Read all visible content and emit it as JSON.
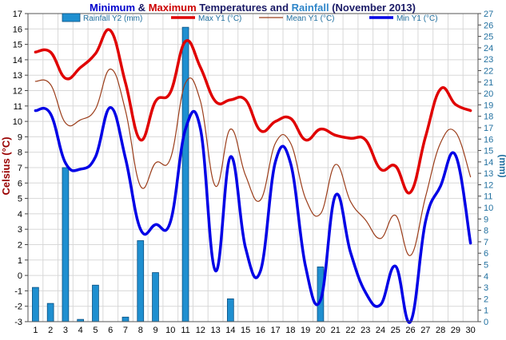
{
  "title": {
    "part1": "Minimum",
    "part2": " & ",
    "part3": "Maximum",
    "part4": " Temperatures and ",
    "part5": "Rainfall",
    "part6": " (November 2013)"
  },
  "colors": {
    "title_min": "#0000cc",
    "title_max": "#cc0000",
    "title_rain": "#2f86c9",
    "title_text": "#1a1a66",
    "rain_bar": "#1f8fd0",
    "rain_bar_stroke": "#0a4f80",
    "max_line": "#e00000",
    "mean_line": "#9b3d1a",
    "min_line": "#0000e6",
    "left_axis": "#990000",
    "right_axis": "#1f6f9f",
    "grid": "#d8d8d8"
  },
  "chart_data": {
    "type": "line",
    "title": "Minimum & Maximum Temperatures and Rainfall (November 2013)",
    "xlabel": "",
    "ylabel": "Celsius (°C)",
    "y2label": "(mm)",
    "x": [
      1,
      2,
      3,
      4,
      5,
      6,
      7,
      8,
      9,
      10,
      11,
      12,
      13,
      14,
      15,
      16,
      17,
      18,
      19,
      20,
      21,
      22,
      23,
      24,
      25,
      26,
      27,
      28,
      29,
      30
    ],
    "ylim": [
      -3,
      17
    ],
    "y_ticks": [
      -3,
      -2,
      -1,
      0,
      1,
      2,
      3,
      4,
      5,
      6,
      7,
      8,
      9,
      10,
      11,
      12,
      13,
      14,
      15,
      16,
      17
    ],
    "y2lim": [
      0,
      27
    ],
    "y2_ticks": [
      0,
      1,
      2,
      3,
      4,
      5,
      6,
      7,
      8,
      9,
      10,
      11,
      12,
      13,
      14,
      15,
      16,
      17,
      18,
      19,
      20,
      21,
      22,
      23,
      24,
      25,
      26,
      27
    ],
    "legend_position": "top",
    "grid": true,
    "series": [
      {
        "name": "Rainfall Y2 (mm)",
        "kind": "bar",
        "axis": "y2",
        "color": "#1f8fd0",
        "values": [
          3.0,
          1.6,
          13.5,
          0.2,
          3.2,
          0,
          0.4,
          7.1,
          4.3,
          0,
          25.8,
          0,
          0,
          2.0,
          0,
          0,
          0,
          0,
          0,
          4.8,
          0,
          0,
          0,
          0,
          0,
          0,
          0,
          0,
          0,
          0
        ]
      },
      {
        "name": "Max Y1 (°C)",
        "kind": "line",
        "axis": "y",
        "color": "#e00000",
        "values": [
          14.5,
          14.5,
          12.8,
          13.5,
          14.4,
          15.9,
          12.5,
          8.8,
          11.3,
          11.9,
          15.2,
          13.5,
          11.3,
          11.4,
          11.4,
          9.4,
          10.0,
          10.2,
          8.8,
          9.5,
          9.1,
          8.9,
          8.8,
          6.9,
          7.1,
          5.4,
          9.0,
          12.1,
          11.1,
          10.7
        ]
      },
      {
        "name": "Mean Y1 (°C)",
        "kind": "line",
        "axis": "y",
        "color": "#9b3d1a",
        "values": [
          12.6,
          12.4,
          9.9,
          10.1,
          10.8,
          13.4,
          10.7,
          5.8,
          7.3,
          7.6,
          12.5,
          11.3,
          5.8,
          9.5,
          6.5,
          4.9,
          8.6,
          8.6,
          5.0,
          4.0,
          7.2,
          4.8,
          3.6,
          2.4,
          3.9,
          1.3,
          5.1,
          8.6,
          9.3,
          6.4
        ]
      },
      {
        "name": "Min Y1 (°C)",
        "kind": "line",
        "axis": "y",
        "color": "#0000e6",
        "values": [
          10.7,
          10.5,
          7.3,
          6.9,
          7.7,
          10.9,
          7.6,
          3.0,
          3.3,
          3.5,
          9.5,
          9.5,
          0.3,
          7.7,
          1.8,
          0.3,
          7.4,
          7.3,
          0.6,
          -1.6,
          5.2,
          1.5,
          -1.1,
          -1.9,
          0.6,
          -3.0,
          3.5,
          5.8,
          7.8,
          2.1
        ]
      }
    ]
  }
}
